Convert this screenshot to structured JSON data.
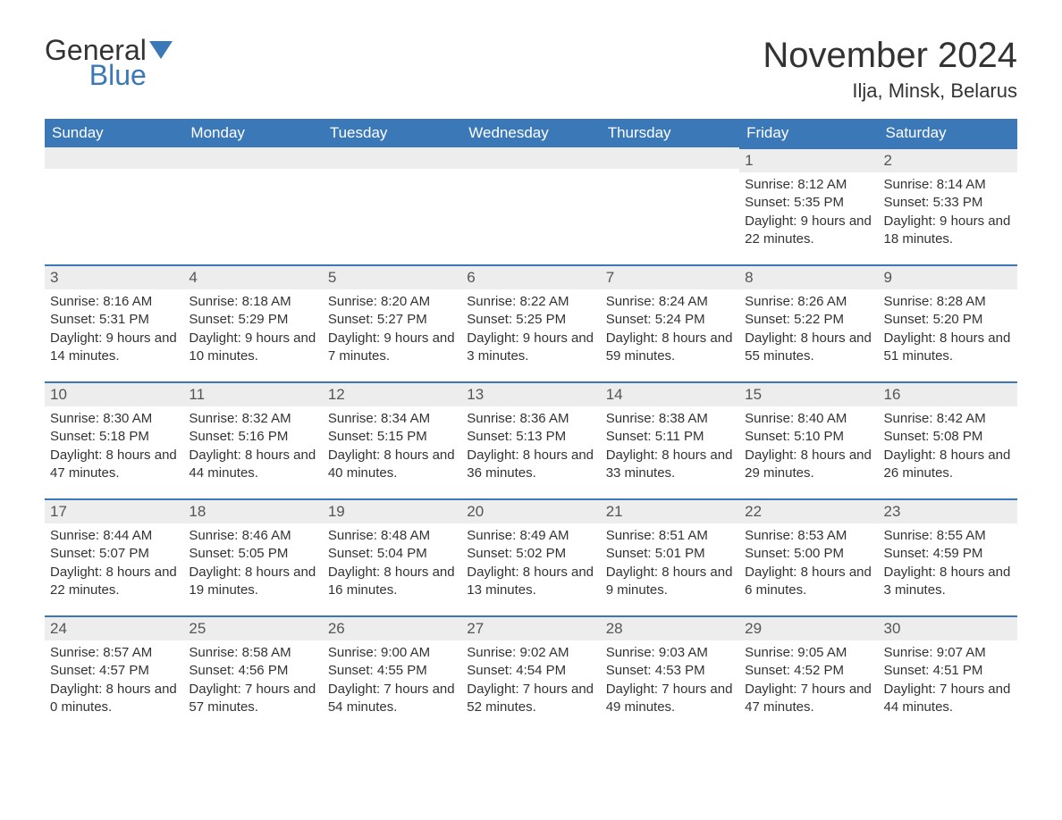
{
  "logo": {
    "general": "General",
    "blue": "Blue",
    "flag_color": "#3a78b8"
  },
  "header": {
    "month_title": "November 2024",
    "location": "Ilja, Minsk, Belarus"
  },
  "colors": {
    "header_bg": "#3a78b8",
    "header_text": "#ffffff",
    "daynum_bg": "#ededed",
    "daynum_border": "#3a78b8",
    "body_text": "#333333",
    "background": "#ffffff"
  },
  "calendar": {
    "type": "table",
    "days_of_week": [
      "Sunday",
      "Monday",
      "Tuesday",
      "Wednesday",
      "Thursday",
      "Friday",
      "Saturday"
    ],
    "weeks": [
      [
        {
          "day": "",
          "sunrise": "",
          "sunset": "",
          "daylight": ""
        },
        {
          "day": "",
          "sunrise": "",
          "sunset": "",
          "daylight": ""
        },
        {
          "day": "",
          "sunrise": "",
          "sunset": "",
          "daylight": ""
        },
        {
          "day": "",
          "sunrise": "",
          "sunset": "",
          "daylight": ""
        },
        {
          "day": "",
          "sunrise": "",
          "sunset": "",
          "daylight": ""
        },
        {
          "day": "1",
          "sunrise": "Sunrise: 8:12 AM",
          "sunset": "Sunset: 5:35 PM",
          "daylight": "Daylight: 9 hours and 22 minutes."
        },
        {
          "day": "2",
          "sunrise": "Sunrise: 8:14 AM",
          "sunset": "Sunset: 5:33 PM",
          "daylight": "Daylight: 9 hours and 18 minutes."
        }
      ],
      [
        {
          "day": "3",
          "sunrise": "Sunrise: 8:16 AM",
          "sunset": "Sunset: 5:31 PM",
          "daylight": "Daylight: 9 hours and 14 minutes."
        },
        {
          "day": "4",
          "sunrise": "Sunrise: 8:18 AM",
          "sunset": "Sunset: 5:29 PM",
          "daylight": "Daylight: 9 hours and 10 minutes."
        },
        {
          "day": "5",
          "sunrise": "Sunrise: 8:20 AM",
          "sunset": "Sunset: 5:27 PM",
          "daylight": "Daylight: 9 hours and 7 minutes."
        },
        {
          "day": "6",
          "sunrise": "Sunrise: 8:22 AM",
          "sunset": "Sunset: 5:25 PM",
          "daylight": "Daylight: 9 hours and 3 minutes."
        },
        {
          "day": "7",
          "sunrise": "Sunrise: 8:24 AM",
          "sunset": "Sunset: 5:24 PM",
          "daylight": "Daylight: 8 hours and 59 minutes."
        },
        {
          "day": "8",
          "sunrise": "Sunrise: 8:26 AM",
          "sunset": "Sunset: 5:22 PM",
          "daylight": "Daylight: 8 hours and 55 minutes."
        },
        {
          "day": "9",
          "sunrise": "Sunrise: 8:28 AM",
          "sunset": "Sunset: 5:20 PM",
          "daylight": "Daylight: 8 hours and 51 minutes."
        }
      ],
      [
        {
          "day": "10",
          "sunrise": "Sunrise: 8:30 AM",
          "sunset": "Sunset: 5:18 PM",
          "daylight": "Daylight: 8 hours and 47 minutes."
        },
        {
          "day": "11",
          "sunrise": "Sunrise: 8:32 AM",
          "sunset": "Sunset: 5:16 PM",
          "daylight": "Daylight: 8 hours and 44 minutes."
        },
        {
          "day": "12",
          "sunrise": "Sunrise: 8:34 AM",
          "sunset": "Sunset: 5:15 PM",
          "daylight": "Daylight: 8 hours and 40 minutes."
        },
        {
          "day": "13",
          "sunrise": "Sunrise: 8:36 AM",
          "sunset": "Sunset: 5:13 PM",
          "daylight": "Daylight: 8 hours and 36 minutes."
        },
        {
          "day": "14",
          "sunrise": "Sunrise: 8:38 AM",
          "sunset": "Sunset: 5:11 PM",
          "daylight": "Daylight: 8 hours and 33 minutes."
        },
        {
          "day": "15",
          "sunrise": "Sunrise: 8:40 AM",
          "sunset": "Sunset: 5:10 PM",
          "daylight": "Daylight: 8 hours and 29 minutes."
        },
        {
          "day": "16",
          "sunrise": "Sunrise: 8:42 AM",
          "sunset": "Sunset: 5:08 PM",
          "daylight": "Daylight: 8 hours and 26 minutes."
        }
      ],
      [
        {
          "day": "17",
          "sunrise": "Sunrise: 8:44 AM",
          "sunset": "Sunset: 5:07 PM",
          "daylight": "Daylight: 8 hours and 22 minutes."
        },
        {
          "day": "18",
          "sunrise": "Sunrise: 8:46 AM",
          "sunset": "Sunset: 5:05 PM",
          "daylight": "Daylight: 8 hours and 19 minutes."
        },
        {
          "day": "19",
          "sunrise": "Sunrise: 8:48 AM",
          "sunset": "Sunset: 5:04 PM",
          "daylight": "Daylight: 8 hours and 16 minutes."
        },
        {
          "day": "20",
          "sunrise": "Sunrise: 8:49 AM",
          "sunset": "Sunset: 5:02 PM",
          "daylight": "Daylight: 8 hours and 13 minutes."
        },
        {
          "day": "21",
          "sunrise": "Sunrise: 8:51 AM",
          "sunset": "Sunset: 5:01 PM",
          "daylight": "Daylight: 8 hours and 9 minutes."
        },
        {
          "day": "22",
          "sunrise": "Sunrise: 8:53 AM",
          "sunset": "Sunset: 5:00 PM",
          "daylight": "Daylight: 8 hours and 6 minutes."
        },
        {
          "day": "23",
          "sunrise": "Sunrise: 8:55 AM",
          "sunset": "Sunset: 4:59 PM",
          "daylight": "Daylight: 8 hours and 3 minutes."
        }
      ],
      [
        {
          "day": "24",
          "sunrise": "Sunrise: 8:57 AM",
          "sunset": "Sunset: 4:57 PM",
          "daylight": "Daylight: 8 hours and 0 minutes."
        },
        {
          "day": "25",
          "sunrise": "Sunrise: 8:58 AM",
          "sunset": "Sunset: 4:56 PM",
          "daylight": "Daylight: 7 hours and 57 minutes."
        },
        {
          "day": "26",
          "sunrise": "Sunrise: 9:00 AM",
          "sunset": "Sunset: 4:55 PM",
          "daylight": "Daylight: 7 hours and 54 minutes."
        },
        {
          "day": "27",
          "sunrise": "Sunrise: 9:02 AM",
          "sunset": "Sunset: 4:54 PM",
          "daylight": "Daylight: 7 hours and 52 minutes."
        },
        {
          "day": "28",
          "sunrise": "Sunrise: 9:03 AM",
          "sunset": "Sunset: 4:53 PM",
          "daylight": "Daylight: 7 hours and 49 minutes."
        },
        {
          "day": "29",
          "sunrise": "Sunrise: 9:05 AM",
          "sunset": "Sunset: 4:52 PM",
          "daylight": "Daylight: 7 hours and 47 minutes."
        },
        {
          "day": "30",
          "sunrise": "Sunrise: 9:07 AM",
          "sunset": "Sunset: 4:51 PM",
          "daylight": "Daylight: 7 hours and 44 minutes."
        }
      ]
    ]
  }
}
